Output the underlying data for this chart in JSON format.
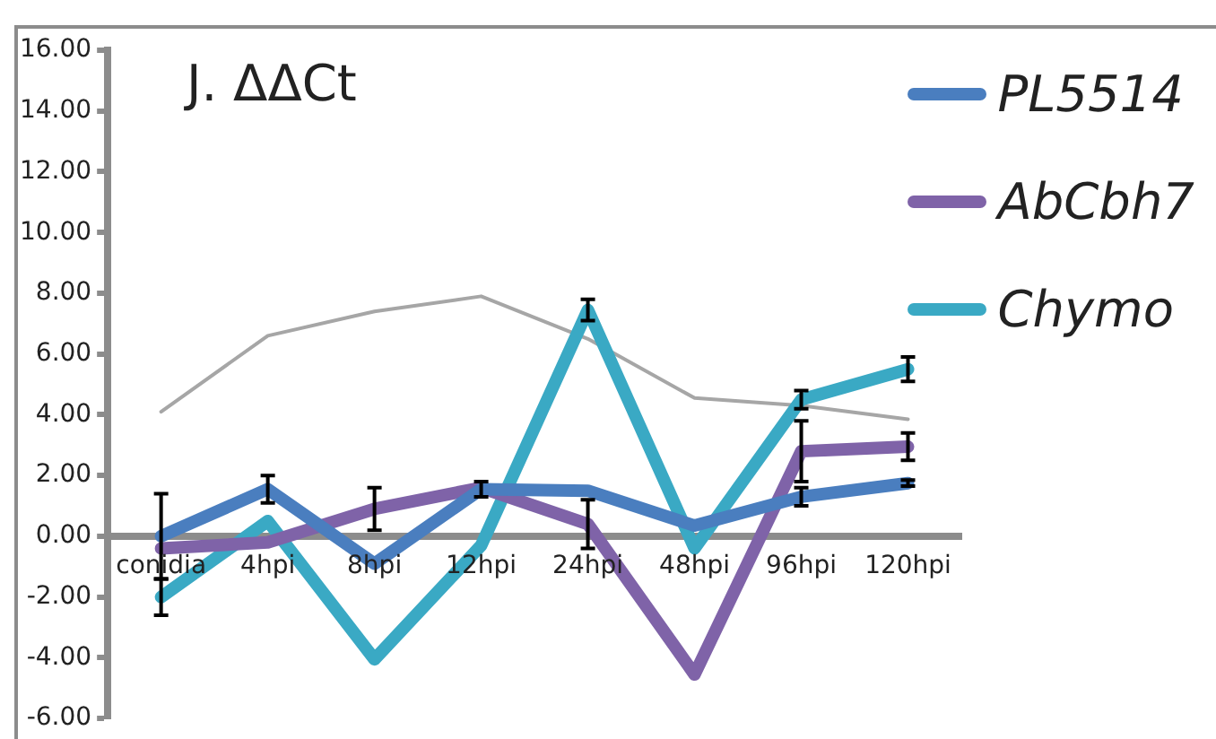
{
  "chart_data": {
    "type": "line",
    "title": "J. ΔΔCt",
    "categories": [
      "conidia",
      "4hpi",
      "8hpi",
      "12hpi",
      "24hpi",
      "48hpi",
      "96hpi",
      "120hpi"
    ],
    "series": [
      {
        "name": "PL5514",
        "color": "#4a7ebf",
        "values": [
          0.0,
          1.55,
          -0.9,
          1.55,
          1.5,
          0.35,
          1.3,
          1.75
        ],
        "errors": [
          1.4,
          0.45,
          null,
          0.25,
          null,
          null,
          0.3,
          0.1
        ]
      },
      {
        "name": "AbCbh7",
        "color": "#7f63a8",
        "values": [
          -0.4,
          -0.2,
          0.9,
          1.6,
          0.4,
          -4.55,
          2.8,
          2.95
        ],
        "errors": [
          null,
          null,
          0.7,
          null,
          0.8,
          null,
          1.0,
          0.45
        ]
      },
      {
        "name": "Chymo",
        "color": "#3aa9c4",
        "values": [
          -2.0,
          0.5,
          -4.05,
          -0.3,
          7.45,
          -0.4,
          4.5,
          5.5
        ],
        "errors": [
          0.6,
          null,
          null,
          null,
          0.35,
          null,
          0.3,
          0.4
        ]
      },
      {
        "color": "#a6a6a6",
        "values": [
          4.1,
          6.6,
          7.4,
          7.9,
          6.5,
          4.55,
          4.3,
          3.85
        ]
      }
    ],
    "ylim": [
      -6,
      16
    ],
    "yticks": [
      {
        "value": -6,
        "label": "-6.00"
      },
      {
        "value": -4,
        "label": "-4.00"
      },
      {
        "value": -2,
        "label": "-2.00"
      },
      {
        "value": 0,
        "label": "0.00"
      },
      {
        "value": 2,
        "label": "2.00"
      },
      {
        "value": 4,
        "label": "4.00"
      },
      {
        "value": 6,
        "label": "6.00"
      },
      {
        "value": 8,
        "label": "8.00"
      },
      {
        "value": 10,
        "label": "10.00"
      },
      {
        "value": 12,
        "label": "12.00"
      },
      {
        "value": 14,
        "label": "14.00"
      },
      {
        "value": 16,
        "label": "16.00"
      }
    ],
    "grid": false,
    "legend": "top right",
    "marker": "none"
  }
}
